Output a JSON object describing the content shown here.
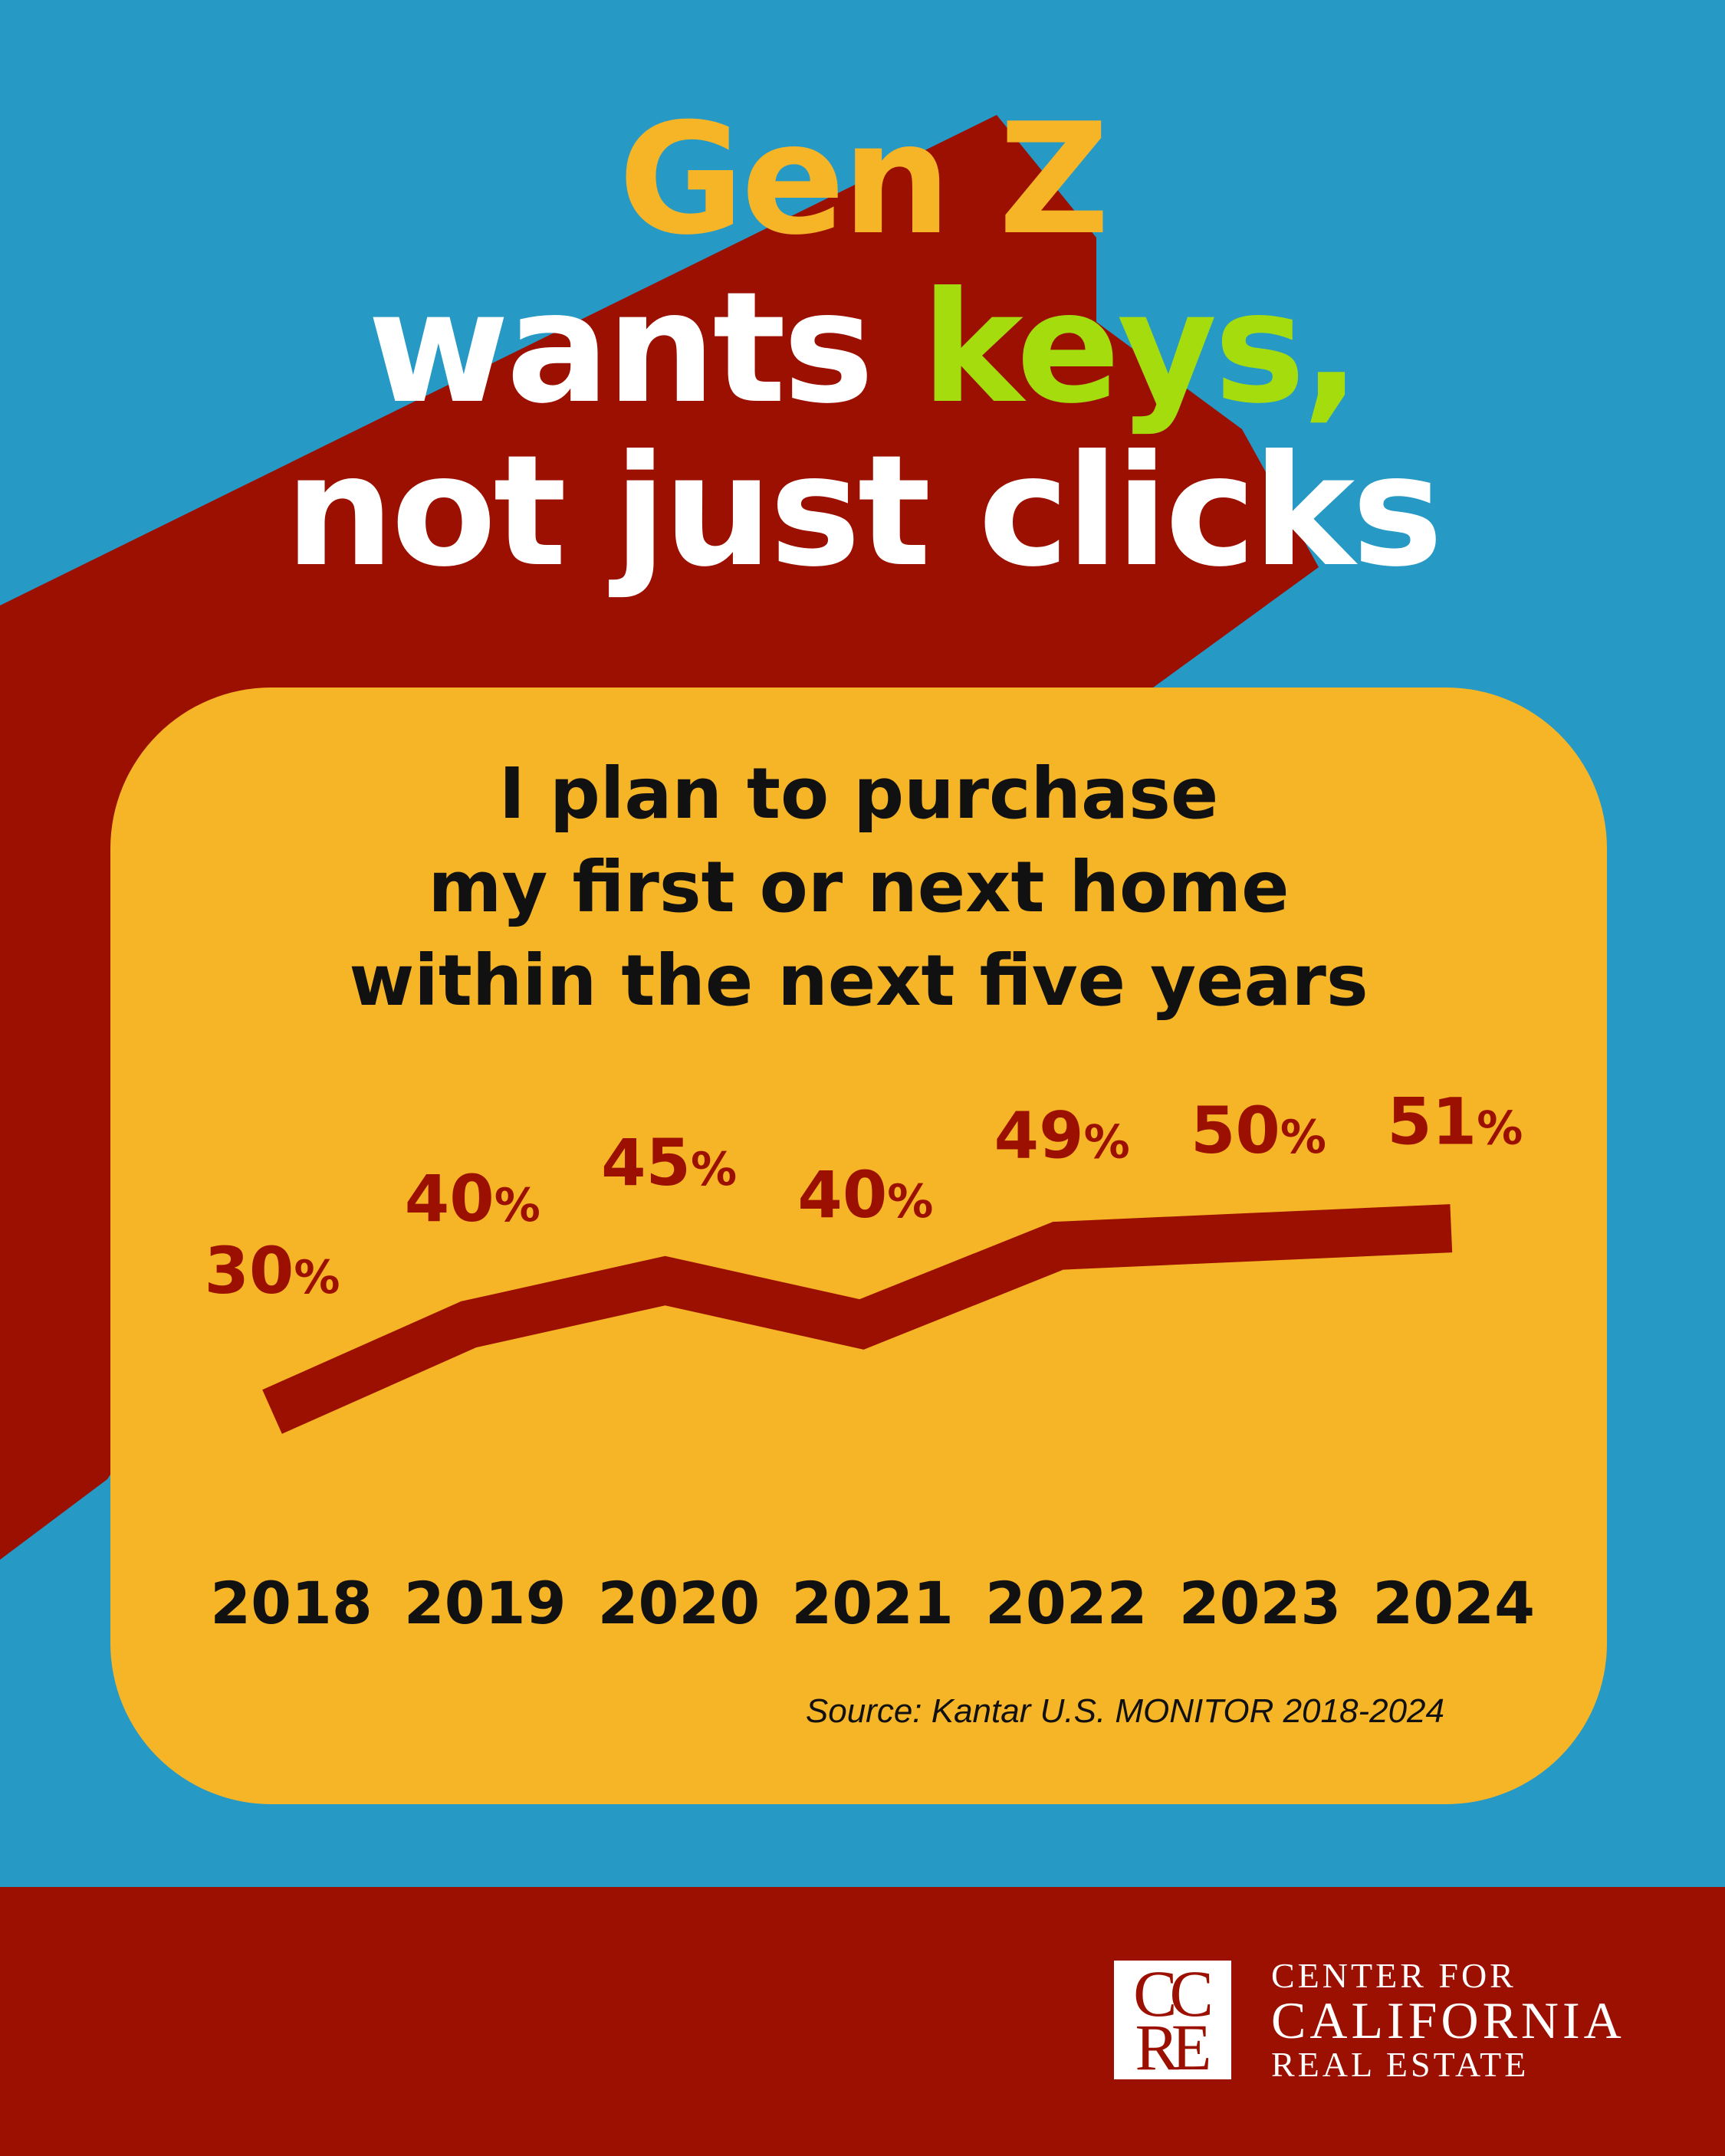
{
  "colors": {
    "background": "#2799c5",
    "accent_red": "#9b1001",
    "card": "#f6b427",
    "title_yellow": "#f6b427",
    "title_green": "#a4dc0e",
    "title_white": "#ffffff"
  },
  "headline": {
    "line1": "Gen Z",
    "line2_part1": "wants ",
    "line2_highlight": "keys,",
    "line3": "not just clicks"
  },
  "chart_data": {
    "type": "line",
    "title_lines": [
      "I plan to purchase",
      "my first or next home",
      "within the next five years"
    ],
    "categories": [
      "2018",
      "2019",
      "2020",
      "2021",
      "2022",
      "2023",
      "2024"
    ],
    "values": [
      30,
      40,
      45,
      40,
      49,
      50,
      51
    ],
    "data_labels": [
      "30%",
      "40%",
      "45%",
      "40%",
      "49%",
      "50%",
      "51%"
    ],
    "unit": "%",
    "grid": false,
    "y_axis_shown": false,
    "line_color": "#9b1001",
    "source": "Source: Kantar U.S. MONITOR 2018-2024"
  },
  "footer": {
    "logo_letters_top": "CC",
    "logo_letters_bottom": "RE",
    "org_line1": "CENTER FOR",
    "org_line2": "CALIFORNIA",
    "org_line3": "REAL ESTATE"
  }
}
